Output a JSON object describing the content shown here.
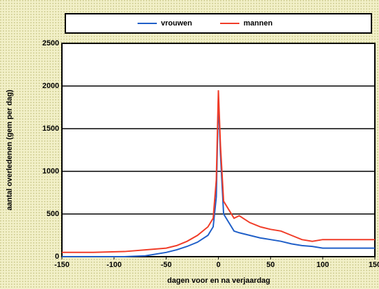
{
  "chart_data": {
    "type": "line",
    "x": [
      -150,
      -120,
      -90,
      -70,
      -50,
      -40,
      -30,
      -20,
      -10,
      -5,
      -2,
      0,
      2,
      5,
      10,
      15,
      20,
      30,
      40,
      50,
      60,
      70,
      80,
      90,
      100,
      120,
      150
    ],
    "series": [
      {
        "name": "vrouwen",
        "color": "#1f5fc8",
        "values": [
          0,
          0,
          0,
          10,
          50,
          80,
          120,
          170,
          250,
          350,
          700,
          1850,
          1200,
          500,
          400,
          300,
          280,
          250,
          220,
          200,
          180,
          150,
          130,
          120,
          100,
          100,
          100
        ]
      },
      {
        "name": "mannen",
        "color": "#f03c28",
        "values": [
          50,
          50,
          60,
          80,
          100,
          130,
          180,
          250,
          350,
          450,
          900,
          1950,
          1300,
          650,
          550,
          450,
          480,
          400,
          350,
          320,
          300,
          250,
          200,
          180,
          200,
          200,
          200
        ]
      }
    ],
    "xlabel": "dagen voor en na verjaardag",
    "ylabel": "aantal overledenen (gem per dag)",
    "xlim": [
      -150,
      150
    ],
    "xticks": [
      -150,
      -100,
      -50,
      0,
      50,
      100,
      150
    ],
    "ylim": [
      0,
      2500
    ],
    "yticks": [
      0,
      500,
      1000,
      1500,
      2000,
      2500
    ],
    "grid": true
  }
}
